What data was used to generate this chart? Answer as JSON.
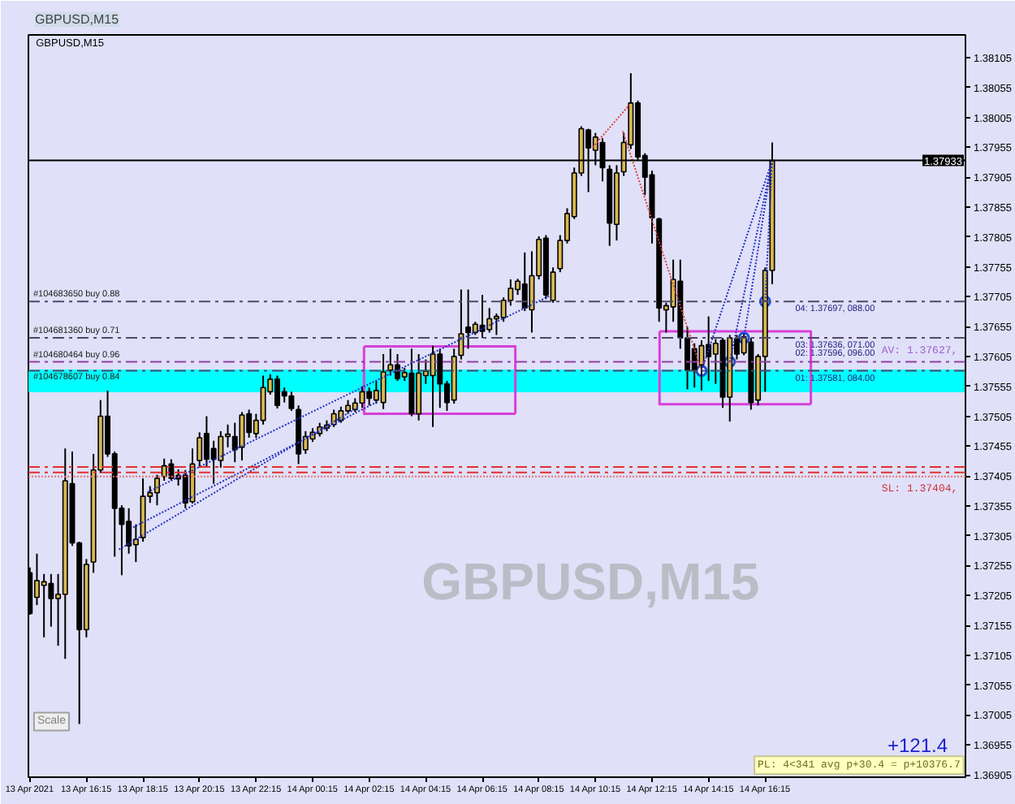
{
  "chart_data": {
    "type": "candlestick",
    "title": "GBPUSD,M15",
    "x": [
      "2021-04-13T14:15",
      "2021-04-13T14:30",
      "2021-04-13T14:45",
      "2021-04-13T15:00",
      "2021-04-13T15:15",
      "2021-04-13T15:30",
      "2021-04-13T15:45",
      "2021-04-13T16:00",
      "2021-04-13T16:15",
      "2021-04-13T16:30",
      "2021-04-13T16:45",
      "2021-04-13T17:00",
      "2021-04-13T17:15",
      "2021-04-13T17:30",
      "2021-04-13T17:45",
      "2021-04-13T18:00",
      "2021-04-13T18:15",
      "2021-04-13T18:30",
      "2021-04-13T18:45",
      "2021-04-13T19:00",
      "2021-04-13T19:15",
      "2021-04-13T19:30",
      "2021-04-13T19:45",
      "2021-04-13T20:00",
      "2021-04-13T20:15",
      "2021-04-13T20:30",
      "2021-04-13T20:45",
      "2021-04-13T21:00",
      "2021-04-13T21:15",
      "2021-04-13T21:30",
      "2021-04-13T21:45",
      "2021-04-13T22:00",
      "2021-04-13T22:15",
      "2021-04-13T22:30",
      "2021-04-13T22:45",
      "2021-04-13T23:00",
      "2021-04-13T23:15",
      "2021-04-13T23:30",
      "2021-04-13T23:45",
      "2021-04-14T00:00",
      "2021-04-14T00:15",
      "2021-04-14T00:30",
      "2021-04-14T00:45",
      "2021-04-14T01:00",
      "2021-04-14T01:15",
      "2021-04-14T01:30",
      "2021-04-14T01:45",
      "2021-04-14T02:00",
      "2021-04-14T02:15",
      "2021-04-14T02:30",
      "2021-04-14T02:45",
      "2021-04-14T03:00",
      "2021-04-14T03:15",
      "2021-04-14T03:30",
      "2021-04-14T03:45",
      "2021-04-14T04:00",
      "2021-04-14T04:15",
      "2021-04-14T04:30",
      "2021-04-14T04:45",
      "2021-04-14T05:00",
      "2021-04-14T05:15",
      "2021-04-14T05:30",
      "2021-04-14T05:45",
      "2021-04-14T06:00",
      "2021-04-14T06:15",
      "2021-04-14T06:30",
      "2021-04-14T06:45",
      "2021-04-14T07:00",
      "2021-04-14T07:15",
      "2021-04-14T07:30",
      "2021-04-14T07:45",
      "2021-04-14T08:00",
      "2021-04-14T08:15",
      "2021-04-14T08:30",
      "2021-04-14T08:45",
      "2021-04-14T09:00",
      "2021-04-14T09:15",
      "2021-04-14T09:30",
      "2021-04-14T09:45",
      "2021-04-14T10:00",
      "2021-04-14T10:15",
      "2021-04-14T10:30",
      "2021-04-14T10:45",
      "2021-04-14T11:00",
      "2021-04-14T11:15",
      "2021-04-14T11:30",
      "2021-04-14T11:45",
      "2021-04-14T12:00",
      "2021-04-14T12:15",
      "2021-04-14T12:30",
      "2021-04-14T12:45",
      "2021-04-14T13:00",
      "2021-04-14T13:15",
      "2021-04-14T13:30",
      "2021-04-14T13:45",
      "2021-04-14T14:00",
      "2021-04-14T14:15",
      "2021-04-14T14:30",
      "2021-04-14T14:45",
      "2021-04-14T15:00",
      "2021-04-14T15:15",
      "2021-04-14T15:30",
      "2021-04-14T15:45",
      "2021-04-14T16:00",
      "2021-04-14T16:15",
      "2021-04-14T16:30"
    ],
    "ohlc": [
      [
        1.37243,
        1.37252,
        1.37173,
        1.37175
      ],
      [
        1.37202,
        1.37275,
        1.37189,
        1.3723
      ],
      [
        1.37222,
        1.37241,
        1.37135,
        1.37228
      ],
      [
        1.37225,
        1.37241,
        1.37153,
        1.372
      ],
      [
        1.372,
        1.37241,
        1.37121,
        1.37207
      ],
      [
        1.37207,
        1.37451,
        1.37099,
        1.37397
      ],
      [
        1.37392,
        1.37446,
        1.37288,
        1.37293
      ],
      [
        1.37293,
        1.37295,
        1.3699,
        1.37148
      ],
      [
        1.37148,
        1.37266,
        1.37135,
        1.37257
      ],
      [
        1.37261,
        1.37442,
        1.37243,
        1.37415
      ],
      [
        1.37415,
        1.37532,
        1.3741,
        1.37505
      ],
      [
        1.37505,
        1.37548,
        1.37437,
        1.37442
      ],
      [
        1.37442,
        1.37446,
        1.3727,
        1.37351
      ],
      [
        1.37351,
        1.37356,
        1.37239,
        1.37324
      ],
      [
        1.37329,
        1.37351,
        1.37275,
        1.37288
      ],
      [
        1.3729,
        1.37324,
        1.37261,
        1.37299
      ],
      [
        1.37302,
        1.37401,
        1.37295,
        1.37371
      ],
      [
        1.37371,
        1.37388,
        1.3736,
        1.37377
      ],
      [
        1.37377,
        1.37407,
        1.37356,
        1.37401
      ],
      [
        1.37404,
        1.37434,
        1.37397,
        1.37422
      ],
      [
        1.37425,
        1.37433,
        1.37397,
        1.37401
      ],
      [
        1.37406,
        1.37416,
        1.37389,
        1.374
      ],
      [
        1.37406,
        1.37415,
        1.37351,
        1.3736
      ],
      [
        1.37362,
        1.37451,
        1.37359,
        1.37425
      ],
      [
        1.37431,
        1.37478,
        1.37419,
        1.37469
      ],
      [
        1.37476,
        1.37505,
        1.37419,
        1.37433
      ],
      [
        1.37451,
        1.37464,
        1.37392,
        1.37433
      ],
      [
        1.37431,
        1.3748,
        1.37419,
        1.37471
      ],
      [
        1.37471,
        1.37491,
        1.37453,
        1.37475
      ],
      [
        1.37471,
        1.37494,
        1.37428,
        1.37449
      ],
      [
        1.37453,
        1.37512,
        1.37431,
        1.37507
      ],
      [
        1.37509,
        1.37516,
        1.37469,
        1.37478
      ],
      [
        1.37476,
        1.37509,
        1.37469,
        1.37498
      ],
      [
        1.37498,
        1.37573,
        1.37491,
        1.37553
      ],
      [
        1.37546,
        1.37575,
        1.37541,
        1.37567
      ],
      [
        1.37567,
        1.37573,
        1.37518,
        1.37523
      ],
      [
        1.37546,
        1.37553,
        1.37528,
        1.37539
      ],
      [
        1.37539,
        1.37546,
        1.37514,
        1.37518
      ],
      [
        1.37516,
        1.37523,
        1.37425,
        1.37442
      ],
      [
        1.37449,
        1.3748,
        1.37442,
        1.37471
      ],
      [
        1.37467,
        1.37485,
        1.37462,
        1.37478
      ],
      [
        1.37476,
        1.37494,
        1.37471,
        1.37487
      ],
      [
        1.37485,
        1.37498,
        1.3748,
        1.3749
      ],
      [
        1.37491,
        1.37516,
        1.37487,
        1.37509
      ],
      [
        1.37498,
        1.37521,
        1.37494,
        1.37514
      ],
      [
        1.37514,
        1.37532,
        1.37509,
        1.37523
      ],
      [
        1.37516,
        1.37535,
        1.37512,
        1.37527
      ],
      [
        1.37527,
        1.37555,
        1.37519,
        1.37546
      ],
      [
        1.37546,
        1.37553,
        1.37523,
        1.37535
      ],
      [
        1.37532,
        1.37564,
        1.37526,
        1.37548
      ],
      [
        1.37528,
        1.37609,
        1.37517,
        1.37579
      ],
      [
        1.37582,
        1.37618,
        1.37573,
        1.37591
      ],
      [
        1.37591,
        1.37609,
        1.37564,
        1.37568
      ],
      [
        1.37571,
        1.37586,
        1.37564,
        1.37578
      ],
      [
        1.37577,
        1.37618,
        1.37505,
        1.37509
      ],
      [
        1.37509,
        1.37609,
        1.37498,
        1.37577
      ],
      [
        1.37573,
        1.376,
        1.37559,
        1.3758
      ],
      [
        1.37573,
        1.37623,
        1.37487,
        1.37609
      ],
      [
        1.37609,
        1.37618,
        1.37519,
        1.37559
      ],
      [
        1.37559,
        1.37564,
        1.37514,
        1.37528
      ],
      [
        1.37532,
        1.37618,
        1.37526,
        1.37605
      ],
      [
        1.37607,
        1.37717,
        1.376,
        1.37643
      ],
      [
        1.37654,
        1.37717,
        1.37618,
        1.37645
      ],
      [
        1.37645,
        1.37663,
        1.37641,
        1.37659
      ],
      [
        1.37657,
        1.37708,
        1.37636,
        1.37647
      ],
      [
        1.3765,
        1.37686,
        1.37645,
        1.37668
      ],
      [
        1.37668,
        1.37677,
        1.37641,
        1.37672
      ],
      [
        1.3767,
        1.37704,
        1.37663,
        1.37699
      ],
      [
        1.37699,
        1.37734,
        1.3769,
        1.37719
      ],
      [
        1.37717,
        1.37735,
        1.37708,
        1.37731
      ],
      [
        1.37726,
        1.37779,
        1.37681,
        1.37686
      ],
      [
        1.37683,
        1.37781,
        1.37645,
        1.3774
      ],
      [
        1.3774,
        1.37806,
        1.37734,
        1.37801
      ],
      [
        1.37803,
        1.37808,
        1.37701,
        1.37708
      ],
      [
        1.37699,
        1.37754,
        1.37695,
        1.37746
      ],
      [
        1.37752,
        1.37808,
        1.37746,
        1.37799
      ],
      [
        1.37799,
        1.37853,
        1.37794,
        1.37844
      ],
      [
        1.37839,
        1.37921,
        1.37835,
        1.37912
      ],
      [
        1.37912,
        1.3799,
        1.37907,
        1.37986
      ],
      [
        1.37984,
        1.37986,
        1.3788,
        1.37954
      ],
      [
        1.3795,
        1.37979,
        1.37925,
        1.37972
      ],
      [
        1.37963,
        1.3797,
        1.37898,
        1.37921
      ],
      [
        1.37918,
        1.37925,
        1.3779,
        1.37828
      ],
      [
        1.37826,
        1.37925,
        1.37799,
        1.37912
      ],
      [
        1.37914,
        1.37979,
        1.37907,
        1.37963
      ],
      [
        1.37959,
        1.38079,
        1.37952,
        1.38029
      ],
      [
        1.38029,
        1.38033,
        1.37934,
        1.37939
      ],
      [
        1.37941,
        1.37945,
        1.37875,
        1.37905
      ],
      [
        1.37909,
        1.37916,
        1.37794,
        1.37837
      ],
      [
        1.37835,
        1.37837,
        1.37663,
        1.37686
      ],
      [
        1.37683,
        1.37695,
        1.37645,
        1.3769
      ],
      [
        1.37688,
        1.37767,
        1.37663,
        1.37734
      ],
      [
        1.37731,
        1.37767,
        1.37618,
        1.37636
      ],
      [
        1.37636,
        1.37654,
        1.3755,
        1.37582
      ],
      [
        1.37618,
        1.37627,
        1.37553,
        1.37582
      ],
      [
        1.37591,
        1.37632,
        1.37548,
        1.37623
      ],
      [
        1.37625,
        1.37672,
        1.37564,
        1.37605
      ],
      [
        1.37609,
        1.37634,
        1.37559,
        1.37627
      ],
      [
        1.37632,
        1.37636,
        1.37519,
        1.37537
      ],
      [
        1.37537,
        1.37641,
        1.37496,
        1.37636
      ],
      [
        1.37634,
        1.37641,
        1.376,
        1.37609
      ],
      [
        1.37611,
        1.37643,
        1.37607,
        1.37638
      ],
      [
        1.37629,
        1.37636,
        1.37516,
        1.37528
      ],
      [
        1.37532,
        1.37609,
        1.37523,
        1.37605
      ],
      [
        1.37605,
        1.37754,
        1.37546,
        1.37749
      ],
      [
        1.37749,
        1.37963,
        1.37726,
        1.37933
      ]
    ],
    "colors": [
      "#000000",
      "#d8b850",
      "#d8b850",
      "#000000",
      "#d8b850",
      "#d8b850",
      "#000000",
      "#000000",
      "#d8b850",
      "#d8b850",
      "#d8b850",
      "#000000",
      "#000000",
      "#000000",
      "#000000",
      "#d8b850",
      "#d8b850",
      "#d8b850",
      "#d8b850",
      "#d8b850",
      "#000000",
      "#000000",
      "#000000",
      "#d8b850",
      "#d8b850",
      "#000000",
      "#000000",
      "#d8b850",
      "#d8b850",
      "#000000",
      "#d8b850",
      "#000000",
      "#d8b850",
      "#d8b850",
      "#d8b850",
      "#000000",
      "#000000",
      "#000000",
      "#000000",
      "#d8b850",
      "#d8b850",
      "#d8b850",
      "#d8b850",
      "#d8b850",
      "#d8b850",
      "#d8b850",
      "#d8b850",
      "#d8b850",
      "#000000",
      "#d8b850",
      "#d8b850",
      "#d8b850",
      "#000000",
      "#d8b850",
      "#000000",
      "#d8b850",
      "#d8b850",
      "#d8b850",
      "#000000",
      "#000000",
      "#d8b850",
      "#d8b850",
      "#000000",
      "#d8b850",
      "#000000",
      "#d8b850",
      "#d8b850",
      "#d8b850",
      "#d8b850",
      "#d8b850",
      "#000000",
      "#d8b850",
      "#d8b850",
      "#000000",
      "#d8b850",
      "#d8b850",
      "#d8b850",
      "#d8b850",
      "#d8b850",
      "#000000",
      "#d8b850",
      "#000000",
      "#000000",
      "#d8b850",
      "#d8b850",
      "#d8b850",
      "#000000",
      "#000000",
      "#000000",
      "#000000",
      "#d8b850",
      "#d8b850",
      "#000000",
      "#000000",
      "#000000",
      "#d8b850",
      "#000000",
      "#d8b850",
      "#000000",
      "#d8b850",
      "#000000",
      "#d8b850",
      "#000000",
      "#d8b850",
      "#d8b850",
      "#d8b850"
    ],
    "series": [
      {
        "type": "line",
        "color": "#d840d8",
        "line_style": "solid",
        "x": [
          "2021-04-14T02:04",
          "2021-04-14T07:25",
          "2021-04-14T07:25"
        ],
        "values": [
          1.37622,
          1.37622,
          1.37509
        ]
      },
      {
        "type": "line",
        "color": "#d840d8",
        "line_style": "solid",
        "x": [
          "2021-04-14T07:25",
          "2021-04-14T02:04",
          "2021-04-14T02:04"
        ],
        "values": [
          1.37509,
          1.37509,
          1.37622
        ]
      },
      {
        "type": "line",
        "color": "#d840d8",
        "line_style": "solid",
        "x": [
          "2021-04-14T12:31",
          "2021-04-14T17:52",
          "2021-04-14T17:52"
        ],
        "values": [
          1.37647,
          1.37647,
          1.37525
        ]
      },
      {
        "type": "line",
        "color": "#d840d8",
        "line_style": "solid",
        "x": [
          "2021-04-14T17:52",
          "2021-04-14T12:31",
          "2021-04-14T12:31"
        ],
        "values": [
          1.37525,
          1.37525,
          1.37647
        ]
      },
      {
        "type": "line",
        "color": "#2030c0",
        "line_style": "dotted",
        "x": [
          "2021-04-13T17:24",
          "2021-04-14T01:51"
        ],
        "values": [
          1.37282,
          1.3752
        ]
      },
      {
        "type": "line",
        "color": "#2030c0",
        "line_style": "dotted",
        "x": [
          "2021-04-13T17:54",
          "2021-04-14T02:34"
        ],
        "values": [
          1.37319,
          1.3753
        ]
      },
      {
        "type": "line",
        "color": "#2030c0",
        "line_style": "dotted",
        "x": [
          "2021-04-13T18:25",
          "2021-04-14T08:37"
        ],
        "values": [
          1.37378,
          1.37706
        ]
      },
      {
        "type": "line",
        "color": "#e04040",
        "line_style": "dotted",
        "x": [
          "2021-04-14T10:09",
          "2021-04-14T11:27"
        ],
        "values": [
          1.37955,
          1.38026
        ]
      },
      {
        "type": "line",
        "color": "#e04040",
        "line_style": "dotted",
        "x": [
          "2021-04-14T11:13",
          "2021-04-14T14:00"
        ],
        "values": [
          1.37982,
          1.37581
        ]
      },
      {
        "type": "line",
        "color": "#2030c0",
        "line_style": "dotted",
        "x": [
          "2021-04-14T14:00",
          "2021-04-14T16:30"
        ],
        "values": [
          1.37581,
          1.37933
        ]
      },
      {
        "type": "line",
        "color": "#2030c0",
        "line_style": "dotted",
        "x": [
          "2021-04-14T15:00",
          "2021-04-14T16:30"
        ],
        "values": [
          1.37596,
          1.37933
        ]
      },
      {
        "type": "line",
        "color": "#2030c0",
        "line_style": "dotted",
        "x": [
          "2021-04-14T15:30",
          "2021-04-14T16:30"
        ],
        "values": [
          1.37636,
          1.37933
        ]
      },
      {
        "type": "line",
        "color": "#2030c0",
        "line_style": "dotted",
        "x": [
          "2021-04-14T16:15",
          "2021-04-14T16:30"
        ],
        "values": [
          1.37697,
          1.37933
        ]
      },
      {
        "type": "scatter",
        "color": "#2050d0",
        "marker": "circle",
        "x": [
          "2021-04-14T14:00",
          "2021-04-14T15:00",
          "2021-04-14T15:30",
          "2021-04-14T16:15"
        ],
        "values": [
          1.37581,
          1.37596,
          1.37636,
          1.37697
        ]
      }
    ],
    "xlim": [
      "2021-04-13T14:12",
      "2021-04-14T23:20"
    ],
    "xticks": [
      {
        "value": "2021-04-13T14:15",
        "label": "13 Apr 2021"
      },
      {
        "value": "2021-04-13T16:15",
        "label": "13 Apr 16:15"
      },
      {
        "value": "2021-04-13T18:15",
        "label": "13 Apr 18:15"
      },
      {
        "value": "2021-04-13T20:15",
        "label": "13 Apr 20:15"
      },
      {
        "value": "2021-04-13T22:15",
        "label": "13 Apr 22:15"
      },
      {
        "value": "2021-04-14T00:15",
        "label": "14 Apr 00:15"
      },
      {
        "value": "2021-04-14T02:15",
        "label": "14 Apr 02:15"
      },
      {
        "value": "2021-04-14T04:15",
        "label": "14 Apr 04:15"
      },
      {
        "value": "2021-04-14T06:15",
        "label": "14 Apr 06:15"
      },
      {
        "value": "2021-04-14T08:15",
        "label": "14 Apr 08:15"
      },
      {
        "value": "2021-04-14T10:15",
        "label": "14 Apr 10:15"
      },
      {
        "value": "2021-04-14T12:15",
        "label": "14 Apr 12:15"
      },
      {
        "value": "2021-04-14T14:15",
        "label": "14 Apr 14:15"
      },
      {
        "value": "2021-04-14T16:15",
        "label": "14 Apr 16:15"
      }
    ],
    "ylim": [
      1.36901,
      1.38143
    ],
    "yticks": [
      1.36905,
      1.36955,
      1.37005,
      1.37055,
      1.37105,
      1.37155,
      1.37205,
      1.37255,
      1.37305,
      1.37355,
      1.37405,
      1.37455,
      1.37505,
      1.37555,
      1.37605,
      1.37655,
      1.37705,
      1.37755,
      1.37805,
      1.37855,
      1.37905,
      1.37955,
      1.38005,
      1.38055,
      1.38105
    ],
    "ref_lines": [
      {
        "axis": "y",
        "value": 1.37933,
        "label": "1.37933",
        "color": "#000000",
        "line_style": "solid"
      },
      {
        "axis": "y",
        "value": 1.37697,
        "label": "#104683650 buy 0.88",
        "color": "#504868",
        "line_style": "dashed"
      },
      {
        "axis": "y",
        "value": 1.37636,
        "label": "#104681360 buy 0.71",
        "color": "#504868",
        "line_style": "dashed"
      },
      {
        "axis": "y",
        "value": 1.37596,
        "label": "#104680464 buy 0.96",
        "color": "#9040a0",
        "line_style": "dashed"
      },
      {
        "axis": "y",
        "value": 1.37581,
        "label": "#104678607 buy 0.84",
        "color": "#504868",
        "line_style": "dashed"
      },
      {
        "axis": "y",
        "value": 1.3742,
        "color": "#e03030",
        "line_style": "dashed"
      },
      {
        "axis": "y",
        "value": 1.37411,
        "color": "#e03030",
        "line_style": "dashed"
      },
      {
        "axis": "y",
        "value": 1.37404,
        "color": "#e87070",
        "line_style": "dotted"
      }
    ],
    "bands": [
      {
        "axis": "y",
        "from": 1.37545,
        "to": 1.37583,
        "color": "#00ffff"
      }
    ],
    "annotations": [
      "GBPUSD,M15",
      "GBPUSD,M15",
      {
        "text": "04: 1.37697, 088.00",
        "x": "2021-04-14T17:19",
        "y": 1.37697
      },
      {
        "text": "03: 1.37636, 071.00",
        "x": "2021-04-14T17:19",
        "y": 1.37636
      },
      {
        "text": "02: 1.37596, 096.00",
        "x": "2021-04-14T17:19",
        "y": 1.37596
      },
      {
        "text": "01: 1.37581, 084.00",
        "x": "2021-04-14T17:19",
        "y": 1.37581
      },
      {
        "text": "AV: 1.37627,",
        "x": "2021-04-14T20:22",
        "y": 1.37627
      },
      {
        "text": "SL: 1.37404,",
        "x": "2021-04-14T20:22",
        "y": 1.37404
      },
      "+121.4",
      "PL: 4<341 avg p+30.4 = p+10376.7",
      "Scale"
    ]
  }
}
